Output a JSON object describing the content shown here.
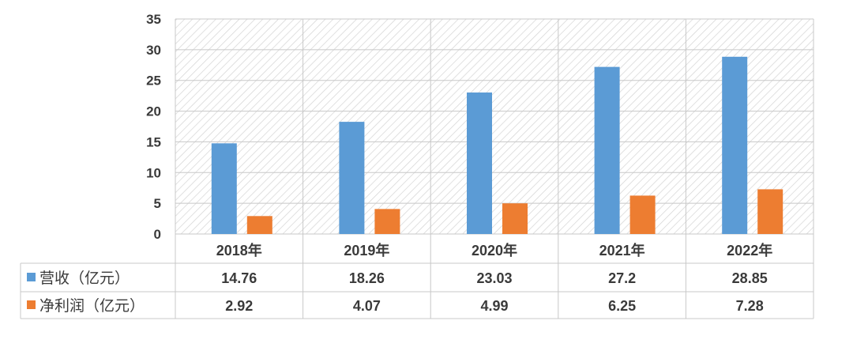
{
  "chart_data": {
    "type": "bar",
    "categories": [
      "2018年",
      "2019年",
      "2020年",
      "2021年",
      "2022年"
    ],
    "ylim": [
      0,
      35
    ],
    "yticks": [
      0,
      5,
      10,
      15,
      20,
      25,
      30,
      35
    ],
    "grid": true,
    "legend": "data-table",
    "series": [
      {
        "name": "营收（亿元）",
        "color": "#5B9BD5",
        "values": [
          14.76,
          18.26,
          23.03,
          27.2,
          28.85
        ]
      },
      {
        "name": "净利润（亿元）",
        "color": "#ED7D31",
        "values": [
          2.92,
          4.07,
          4.99,
          6.25,
          7.28
        ]
      }
    ],
    "table_values": [
      [
        "14.76",
        "18.26",
        "23.03",
        "27.2",
        "28.85"
      ],
      [
        "2.92",
        "4.07",
        "4.99",
        "6.25",
        "7.28"
      ]
    ]
  }
}
